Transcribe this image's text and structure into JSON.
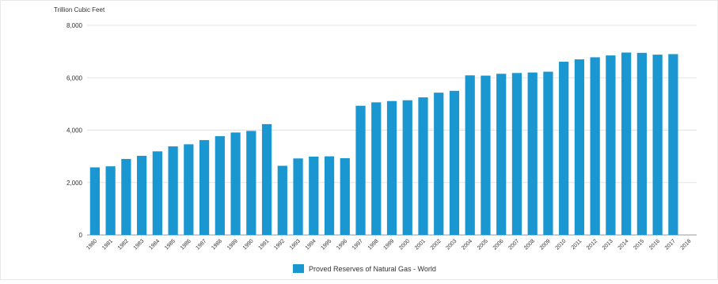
{
  "chart_data": {
    "type": "bar",
    "ylabel": "Trillion Cubic Feet",
    "ylim": [
      0,
      8000
    ],
    "yticks": [
      0,
      2000,
      4000,
      6000,
      8000
    ],
    "ytick_labels": [
      "0",
      "2,000",
      "4,000",
      "6,000",
      "8,000"
    ],
    "grid": true,
    "legend_position": "bottom",
    "categories": [
      "1980",
      "1981",
      "1982",
      "1983",
      "1984",
      "1985",
      "1986",
      "1987",
      "1988",
      "1989",
      "1990",
      "1991",
      "1992",
      "1993",
      "1994",
      "1995",
      "1996",
      "1997",
      "1998",
      "1999",
      "2000",
      "2001",
      "2002",
      "2003",
      "2004",
      "2005",
      "2006",
      "2007",
      "2008",
      "2009",
      "2010",
      "2011",
      "2012",
      "2013",
      "2014",
      "2015",
      "2016",
      "2017",
      "2018"
    ],
    "series": [
      {
        "name": "Proved Reserves of Natural Gas - World",
        "color": "#1a96d0",
        "values": [
          2580,
          2620,
          2900,
          3020,
          3190,
          3380,
          3460,
          3620,
          3770,
          3910,
          3970,
          4230,
          2640,
          2920,
          2990,
          3000,
          2930,
          4930,
          5060,
          5110,
          5140,
          5250,
          5430,
          5500,
          6090,
          6080,
          6150,
          6180,
          6200,
          6230,
          6610,
          6700,
          6780,
          6850,
          6960,
          6950,
          6880,
          6900,
          null
        ]
      }
    ]
  },
  "colors": {
    "bar": "#1a96d0",
    "grid": "#e3e3e3",
    "axis": "#999999",
    "text": "#333333"
  }
}
